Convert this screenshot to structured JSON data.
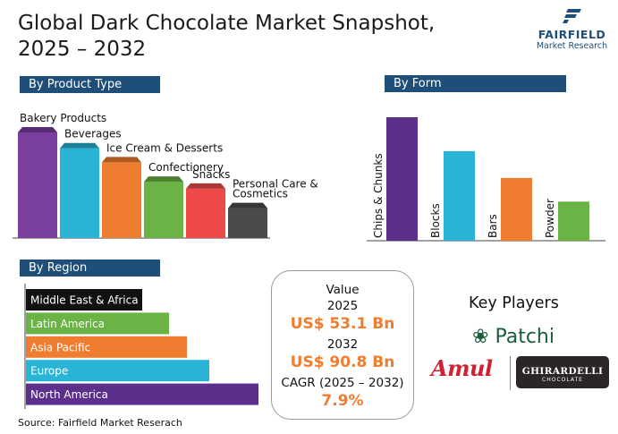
{
  "header": {
    "title_line1": "Global Dark Chocolate Market Snapshot,",
    "title_line2": "2025 – 2032"
  },
  "logo": {
    "name": "FAIRFIELD",
    "subtitle": "Market Research",
    "icon": "fairfield-f-icon",
    "color": "#1f4e79"
  },
  "sections": {
    "product_type": "By Product Type",
    "form": "By Form",
    "region": "By Region"
  },
  "chart_data": [
    {
      "type": "bar",
      "title": "By Product Type",
      "categories": [
        "Bakery Products",
        "Beverages",
        "Ice Cream & Desserts",
        "Confectionery",
        "Snacks",
        "Personal Care & Cosmetics"
      ],
      "values": [
        6,
        5.1,
        4.3,
        3.2,
        2.8,
        1.7
      ],
      "colors": [
        "#7b3fa0",
        "#29b3d6",
        "#ef7d2f",
        "#6ab344",
        "#ef4a4a",
        "#4a4a4a"
      ],
      "grid": false,
      "legend": "none"
    },
    {
      "type": "bar",
      "title": "By Form",
      "categories": [
        "Chips & Chunks",
        "Blocks",
        "Bars",
        "Powder"
      ],
      "values": [
        6,
        4.35,
        3.05,
        1.9
      ],
      "colors": [
        "#5b2f8c",
        "#29b3d6",
        "#ef7d2f",
        "#6ab344"
      ],
      "grid": false,
      "legend": "none"
    },
    {
      "type": "bar",
      "orientation": "horizontal",
      "title": "By Region",
      "categories": [
        "Middle East & Africa",
        "Latin America",
        "Asia Pacific",
        "Europe",
        "North America"
      ],
      "values": [
        2.6,
        3.2,
        3.6,
        4.1,
        5.2
      ],
      "colors": [
        "#111111",
        "#6ab344",
        "#ef7d2f",
        "#29b3d6",
        "#5b2f8c"
      ],
      "grid": false,
      "legend": "none"
    }
  ],
  "value_box": {
    "label": "Value",
    "year1": "2025",
    "value1": "US$ 53.1 Bn",
    "year2": "2032",
    "value2": "US$ 90.8 Bn",
    "cagr_label": "CAGR (2025 – 2032)",
    "cagr_value": "7.9%",
    "accent": "#ef7d2f"
  },
  "key_players": {
    "title": "Key Players",
    "players": [
      "Patchi",
      "Amul",
      "GHIRARDELLI"
    ],
    "ghirardelli_sub": "CHOCOLATE"
  },
  "source": "Source: Fairfield Market Reserach"
}
